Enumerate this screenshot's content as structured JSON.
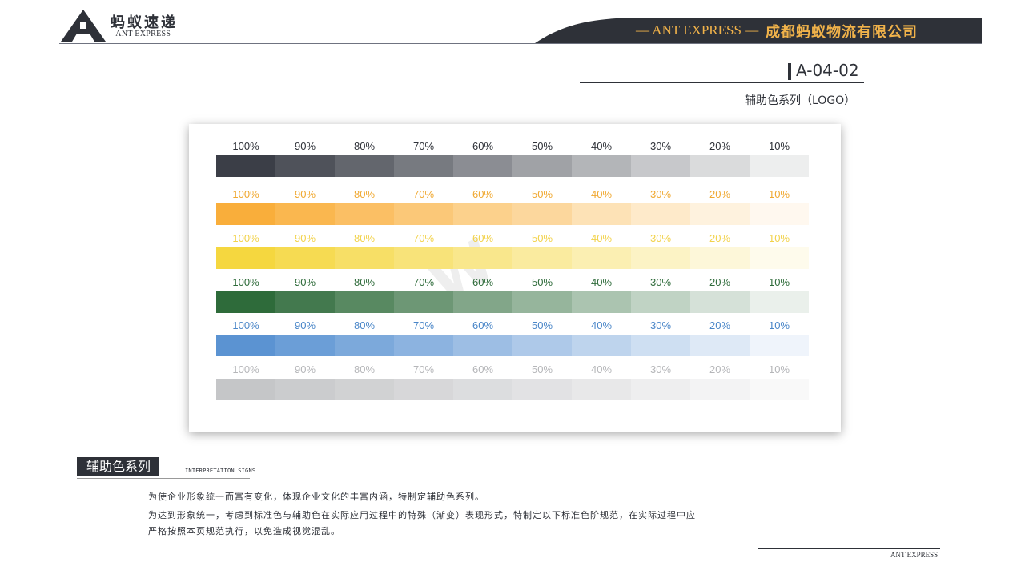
{
  "header": {
    "logo_cn": "蚂蚁速递",
    "logo_en": "—ANT EXPRESS—",
    "band_en": "— ANT EXPRESS —",
    "band_cn": "成都蚂蚁物流有限公司"
  },
  "page": {
    "code": "A-04-02",
    "subtitle": "辅助色系列（LOGO）"
  },
  "chart_data": {
    "type": "table",
    "columns": [
      "100%",
      "90%",
      "80%",
      "70%",
      "60%",
      "50%",
      "40%",
      "30%",
      "20%",
      "10%"
    ],
    "rows": [
      {
        "label_color": "#2e3138",
        "colors": [
          "#3b3e47",
          "#4f525a",
          "#63666d",
          "#777a80",
          "#8b8d93",
          "#a0a2a6",
          "#b3b5b8",
          "#c7c8cb",
          "#dadbdc",
          "#edeeee"
        ]
      },
      {
        "label_color": "#f0a830",
        "colors": [
          "#f9ae3b",
          "#fab74f",
          "#fbbf64",
          "#fbc878",
          "#fcd18c",
          "#fcd79d",
          "#fde2b6",
          "#feeaca",
          "#fef2de",
          "#fff8ef"
        ]
      },
      {
        "label_color": "#f2d24a",
        "colors": [
          "#f5d73f",
          "#f6db52",
          "#f7df66",
          "#f8e379",
          "#f9e78c",
          "#faeb9f",
          "#fbefb2",
          "#fcf3c5",
          "#fdf7d9",
          "#fefbec"
        ]
      },
      {
        "label_color": "#2e6b3a",
        "colors": [
          "#2e6b3a",
          "#43794e",
          "#588961",
          "#6d9775",
          "#82a689",
          "#96b59c",
          "#abc4b0",
          "#c0d3c4",
          "#d5e1d8",
          "#eaf0eb"
        ]
      },
      {
        "label_color": "#4a86c8",
        "colors": [
          "#5b93d2",
          "#6b9ed7",
          "#7ca9db",
          "#8cb3e0",
          "#9dbee4",
          "#aec9e9",
          "#bed4ed",
          "#cedff2",
          "#dee9f6",
          "#eff4fb"
        ]
      },
      {
        "label_color": "#b5b6b9",
        "colors": [
          "#c5c6c8",
          "#cbccce",
          "#d1d2d3",
          "#d7d7d9",
          "#dcdddf",
          "#e2e2e4",
          "#e8e8e9",
          "#eeeeef",
          "#f3f3f4",
          "#f9f9f9"
        ]
      }
    ]
  },
  "section": {
    "title": "辅助色系列",
    "subtitle_en": "INTERPRETATION SIGNS",
    "paragraph1": "为使企业形象统一而富有变化，体现企业文化的丰富内涵，特制定辅助色系列。",
    "paragraph2": "为达到形象统一，考虑到标准色与辅助色在实际应用过程中的特殊（渐变）表现形式，特制定以下标准色阶规范，在实际过程中应严格按照本页规范执行，以免造成视觉混乱。"
  },
  "footer": {
    "brand": "ANT EXPRESS"
  },
  "colors": {
    "brand_dark": "#2e3138",
    "brand_gold": "#f0b24a"
  }
}
